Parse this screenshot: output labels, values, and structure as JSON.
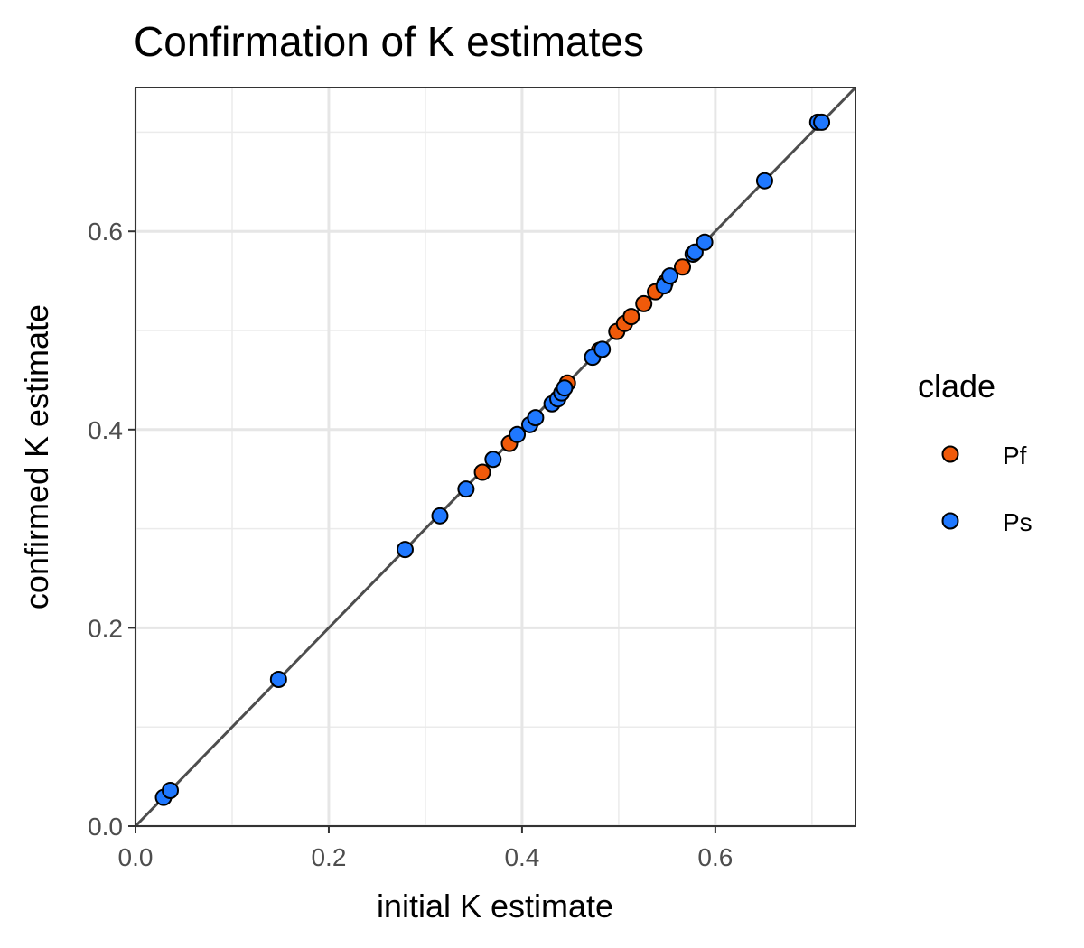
{
  "chart_data": {
    "type": "scatter",
    "title": "Confirmation of K estimates",
    "xlabel": "initial K estimate",
    "ylabel": "confirmed K estimate",
    "xlim": [
      0.0,
      0.745
    ],
    "ylim": [
      0.0,
      0.745
    ],
    "x_ticks": [
      0.0,
      0.2,
      0.4,
      0.6
    ],
    "y_ticks": [
      0.0,
      0.2,
      0.4,
      0.6
    ],
    "x_tick_labels": [
      "0.0",
      "0.2",
      "0.4",
      "0.6"
    ],
    "y_tick_labels": [
      "0.0",
      "0.2",
      "0.4",
      "0.6"
    ],
    "grid": true,
    "reference_line": "y = x",
    "legend": {
      "title": "clade",
      "position": "right"
    },
    "series": [
      {
        "name": "Pf",
        "color": "#F05A0A",
        "points": [
          [
            0.359,
            0.357
          ],
          [
            0.387,
            0.386
          ],
          [
            0.447,
            0.447
          ],
          [
            0.48,
            0.48
          ],
          [
            0.498,
            0.499
          ],
          [
            0.506,
            0.507
          ],
          [
            0.513,
            0.514
          ],
          [
            0.526,
            0.527
          ],
          [
            0.538,
            0.539
          ],
          [
            0.548,
            0.548
          ],
          [
            0.566,
            0.564
          ]
        ]
      },
      {
        "name": "Ps",
        "color": "#1F78FF",
        "points": [
          [
            0.029,
            0.029
          ],
          [
            0.036,
            0.036
          ],
          [
            0.148,
            0.148
          ],
          [
            0.279,
            0.279
          ],
          [
            0.315,
            0.313
          ],
          [
            0.342,
            0.34
          ],
          [
            0.37,
            0.37
          ],
          [
            0.395,
            0.395
          ],
          [
            0.408,
            0.405
          ],
          [
            0.414,
            0.412
          ],
          [
            0.431,
            0.426
          ],
          [
            0.437,
            0.431
          ],
          [
            0.441,
            0.437
          ],
          [
            0.444,
            0.442
          ],
          [
            0.473,
            0.473
          ],
          [
            0.483,
            0.481
          ],
          [
            0.547,
            0.545
          ],
          [
            0.553,
            0.555
          ],
          [
            0.577,
            0.577
          ],
          [
            0.579,
            0.579
          ],
          [
            0.589,
            0.589
          ],
          [
            0.651,
            0.651
          ],
          [
            0.706,
            0.71
          ],
          [
            0.71,
            0.71
          ]
        ]
      }
    ]
  }
}
